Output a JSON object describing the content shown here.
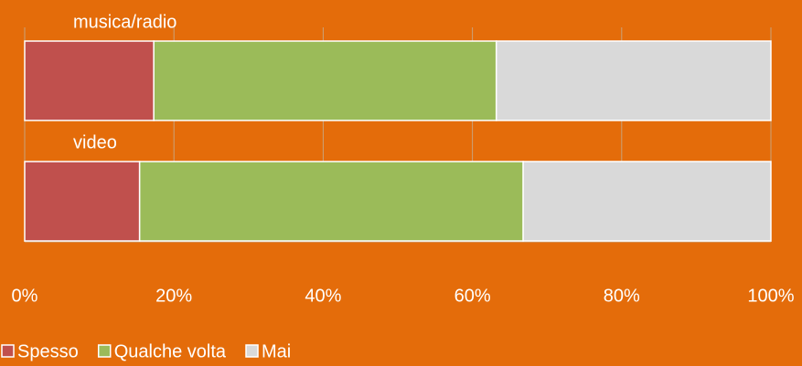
{
  "chart_data": {
    "type": "stacked_bar_horizontal",
    "categories": [
      "musica/radio",
      "video"
    ],
    "series": [
      {
        "name": "Spesso",
        "color": "#c0504d",
        "values": [
          17.3,
          15.4
        ]
      },
      {
        "name": "Qualche volta",
        "color": "#9bbb59",
        "values": [
          45.9,
          51.4
        ]
      },
      {
        "name": "Mai",
        "color": "#d9d9d9",
        "values": [
          36.8,
          33.2
        ]
      }
    ],
    "xlim": [
      0,
      100
    ],
    "xticks": [
      {
        "value": 0,
        "label": "0%"
      },
      {
        "value": 20,
        "label": "20%"
      },
      {
        "value": 40,
        "label": "40%"
      },
      {
        "value": 60,
        "label": "60%"
      },
      {
        "value": 80,
        "label": "80%"
      },
      {
        "value": 100,
        "label": "100%"
      }
    ],
    "grid": true,
    "legend": "bottom"
  }
}
